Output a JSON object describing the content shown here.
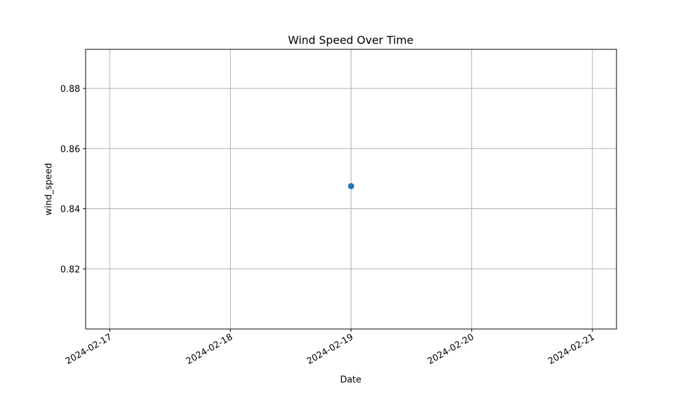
{
  "chart_data": {
    "type": "scatter",
    "title": "Wind Speed Over Time",
    "xlabel": "Date",
    "ylabel": "wind_speed",
    "x_ticks": [
      "2024-02-17",
      "2024-02-18",
      "2024-02-19",
      "2024-02-20",
      "2024-02-21"
    ],
    "y_ticks": [
      "0.82",
      "0.84",
      "0.86",
      "0.88"
    ],
    "xlim": [
      "2024-02-16.8",
      "2024-02-21.2"
    ],
    "ylim": [
      0.8,
      0.893
    ],
    "grid": true,
    "legend": "none",
    "series": [
      {
        "x": [
          "2024-02-19"
        ],
        "y": [
          0.8475
        ],
        "color": "#1f77b4",
        "marker": "circle"
      }
    ]
  }
}
